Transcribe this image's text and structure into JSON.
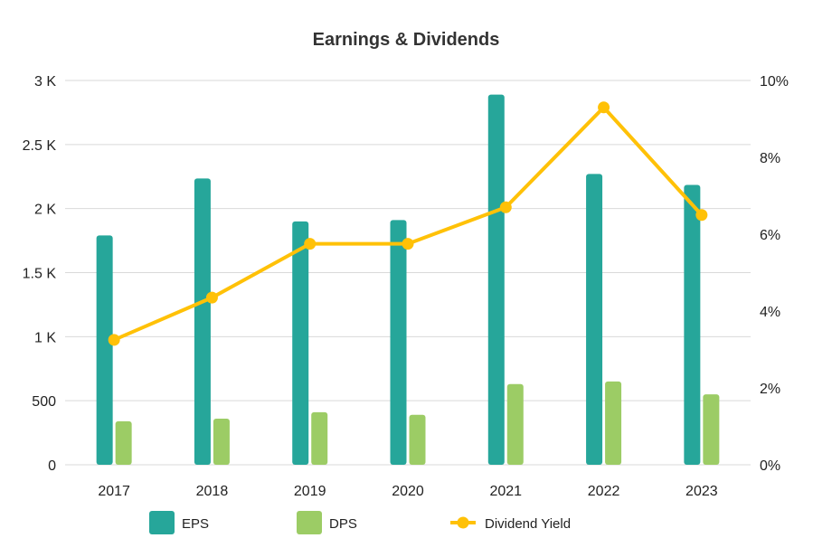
{
  "chart_data": {
    "type": "bar",
    "title": "Earnings & Dividends",
    "categories": [
      "2017",
      "2018",
      "2019",
      "2020",
      "2021",
      "2022",
      "2023"
    ],
    "series": [
      {
        "name": "EPS",
        "type": "bar",
        "axis": "left",
        "color": "#26a69a",
        "values": [
          1790,
          2235,
          1900,
          1910,
          2890,
          2270,
          2185
        ]
      },
      {
        "name": "DPS",
        "type": "bar",
        "axis": "left",
        "color": "#9ccc65",
        "values": [
          340,
          360,
          410,
          390,
          630,
          650,
          550
        ]
      },
      {
        "name": "Dividend Yield",
        "type": "line",
        "axis": "right",
        "color": "#ffc107",
        "values": [
          3.25,
          4.35,
          5.75,
          5.75,
          6.7,
          9.3,
          6.5
        ]
      }
    ],
    "y_left": {
      "ylim": [
        0,
        3000
      ],
      "ticks": [
        0,
        500,
        1000,
        1500,
        2000,
        2500,
        3000
      ],
      "tick_labels": [
        "0",
        "500",
        "1 K",
        "1.5 K",
        "2 K",
        "2.5 K",
        "3 K"
      ]
    },
    "y_right": {
      "ylim": [
        0,
        10
      ],
      "ticks": [
        0,
        2,
        4,
        6,
        8,
        10
      ],
      "tick_labels": [
        "0%",
        "2%",
        "4%",
        "6%",
        "8%",
        "10%"
      ]
    },
    "grid": true,
    "legend": "bottom-center"
  }
}
